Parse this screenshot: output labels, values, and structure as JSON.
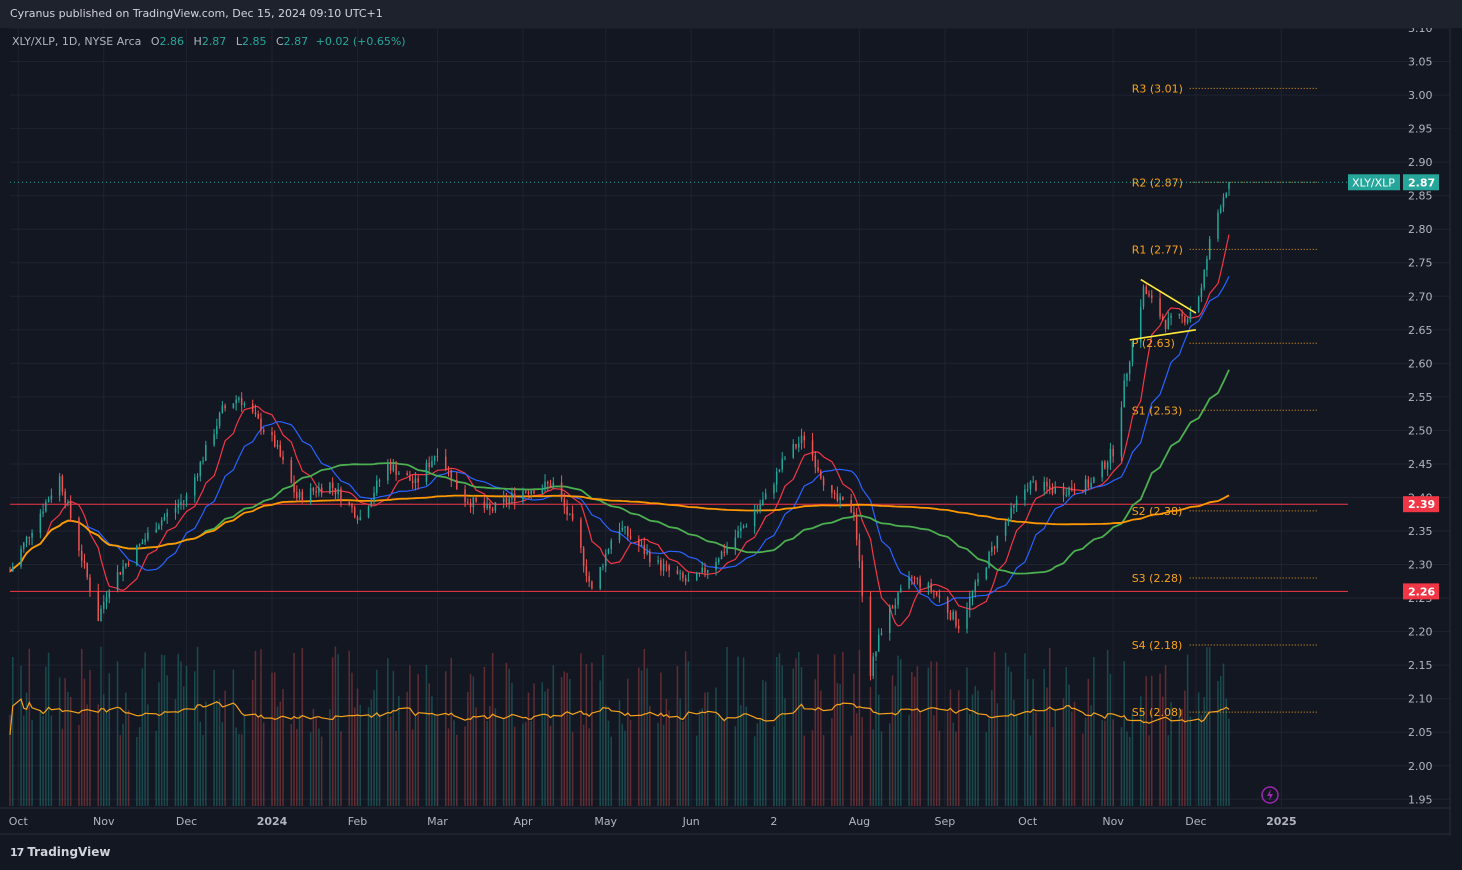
{
  "header": {
    "publisher": "Cyranus published on TradingView.com, Dec 15, 2024 09:10 UTC+1"
  },
  "legend": {
    "symbol": "XLY/XLP, 1D, NYSE Arca",
    "open_label": "O",
    "open": "2.86",
    "high_label": "H",
    "high": "2.87",
    "low_label": "L",
    "low": "2.85",
    "close_label": "C",
    "close": "2.87",
    "change": "+0.02 (+0.65%)"
  },
  "footer": {
    "brand": "TradingView"
  },
  "colors": {
    "background": "#131722",
    "up": "#26a69a",
    "down": "#ef5350",
    "ma_fast": "#f23645",
    "ma_mid": "#2962ff",
    "ma_slow": "#4caf50",
    "ma_long": "#ff9800",
    "pivot": "#f7a21b",
    "hline": "#f23645",
    "trendline": "#ffeb3b"
  },
  "chart_data": {
    "type": "candlestick",
    "symbol": "XLY/XLP",
    "ylim": [
      1.94,
      3.1
    ],
    "y_ticks": [
      "3.10",
      "3.05",
      "3.00",
      "2.95",
      "2.90",
      "2.85",
      "2.80",
      "2.75",
      "2.70",
      "2.65",
      "2.60",
      "2.55",
      "2.50",
      "2.45",
      "2.40",
      "2.35",
      "2.30",
      "2.25",
      "2.20",
      "2.15",
      "2.10",
      "2.05",
      "2.00",
      "1.95"
    ],
    "x_ticks": [
      "Oct",
      "Nov",
      "Dec",
      "2024",
      "Feb",
      "Mar",
      "Apr",
      "May",
      "Jun",
      "2",
      "Aug",
      "Sep",
      "Oct",
      "Nov",
      "Dec",
      "2025"
    ],
    "price_anchors": [
      {
        "x": "2023-09-28",
        "y": 2.29
      },
      {
        "x": "2023-10-08",
        "y": 2.37
      },
      {
        "x": "2023-10-16",
        "y": 2.43
      },
      {
        "x": "2023-10-30",
        "y": 2.22
      },
      {
        "x": "2023-11-03",
        "y": 2.27
      },
      {
        "x": "2023-11-20",
        "y": 2.36
      },
      {
        "x": "2023-12-01",
        "y": 2.4
      },
      {
        "x": "2023-12-14",
        "y": 2.53
      },
      {
        "x": "2023-12-20",
        "y": 2.55
      },
      {
        "x": "2024-01-02",
        "y": 2.48
      },
      {
        "x": "2024-01-10",
        "y": 2.4
      },
      {
        "x": "2024-01-22",
        "y": 2.42
      },
      {
        "x": "2024-02-02",
        "y": 2.37
      },
      {
        "x": "2024-02-12",
        "y": 2.45
      },
      {
        "x": "2024-02-22",
        "y": 2.42
      },
      {
        "x": "2024-03-01",
        "y": 2.47
      },
      {
        "x": "2024-03-10",
        "y": 2.4
      },
      {
        "x": "2024-03-20",
        "y": 2.38
      },
      {
        "x": "2024-04-01",
        "y": 2.41
      },
      {
        "x": "2024-04-12",
        "y": 2.42
      },
      {
        "x": "2024-04-20",
        "y": 2.35
      },
      {
        "x": "2024-04-26",
        "y": 2.26
      },
      {
        "x": "2024-05-05",
        "y": 2.36
      },
      {
        "x": "2024-05-20",
        "y": 2.3
      },
      {
        "x": "2024-06-01",
        "y": 2.27
      },
      {
        "x": "2024-06-15",
        "y": 2.33
      },
      {
        "x": "2024-06-28",
        "y": 2.4
      },
      {
        "x": "2024-07-05",
        "y": 2.46
      },
      {
        "x": "2024-07-12",
        "y": 2.49
      },
      {
        "x": "2024-07-22",
        "y": 2.4
      },
      {
        "x": "2024-07-30",
        "y": 2.38
      },
      {
        "x": "2024-08-05",
        "y": 2.14
      },
      {
        "x": "2024-08-10",
        "y": 2.22
      },
      {
        "x": "2024-08-20",
        "y": 2.28
      },
      {
        "x": "2024-08-28",
        "y": 2.26
      },
      {
        "x": "2024-09-06",
        "y": 2.21
      },
      {
        "x": "2024-09-20",
        "y": 2.34
      },
      {
        "x": "2024-10-01",
        "y": 2.42
      },
      {
        "x": "2024-10-12",
        "y": 2.41
      },
      {
        "x": "2024-10-24",
        "y": 2.42
      },
      {
        "x": "2024-11-01",
        "y": 2.47
      },
      {
        "x": "2024-11-06",
        "y": 2.59
      },
      {
        "x": "2024-11-12",
        "y": 2.71
      },
      {
        "x": "2024-11-20",
        "y": 2.66
      },
      {
        "x": "2024-11-28",
        "y": 2.67
      },
      {
        "x": "2024-12-03",
        "y": 2.71
      },
      {
        "x": "2024-12-06",
        "y": 2.78
      },
      {
        "x": "2024-12-10",
        "y": 2.84
      },
      {
        "x": "2024-12-13",
        "y": 2.87
      }
    ],
    "last_price": {
      "label": "XLY/XLP",
      "value": "2.87"
    },
    "pivot_levels": [
      {
        "label": "R3 (3.01)",
        "value": 3.01
      },
      {
        "label": "R2 (2.87)",
        "value": 2.87
      },
      {
        "label": "R1 (2.77)",
        "value": 2.77
      },
      {
        "label": "P (2.63)",
        "value": 2.63
      },
      {
        "label": "S1 (2.53)",
        "value": 2.53
      },
      {
        "label": "S2 (2.38)",
        "value": 2.38
      },
      {
        "label": "S3 (2.28)",
        "value": 2.28
      },
      {
        "label": "S4 (2.18)",
        "value": 2.18
      },
      {
        "label": "S5 (2.08)",
        "value": 2.08
      }
    ],
    "horizontal_lines": [
      {
        "value": 2.39,
        "label": "2.39"
      },
      {
        "value": 2.26,
        "label": "2.26"
      }
    ],
    "trendlines": [
      {
        "from": {
          "x": "2024-11-11",
          "y": 2.725
        },
        "to": {
          "x": "2024-12-01",
          "y": 2.675
        }
      },
      {
        "from": {
          "x": "2024-11-07",
          "y": 2.635
        },
        "to": {
          "x": "2024-12-01",
          "y": 2.65
        }
      }
    ],
    "moving_averages": [
      {
        "color": "#f23645",
        "period": 10
      },
      {
        "color": "#2962ff",
        "period": 20
      },
      {
        "color": "#4caf50",
        "period": 50
      },
      {
        "color": "#ff9800",
        "period": 200
      }
    ]
  }
}
